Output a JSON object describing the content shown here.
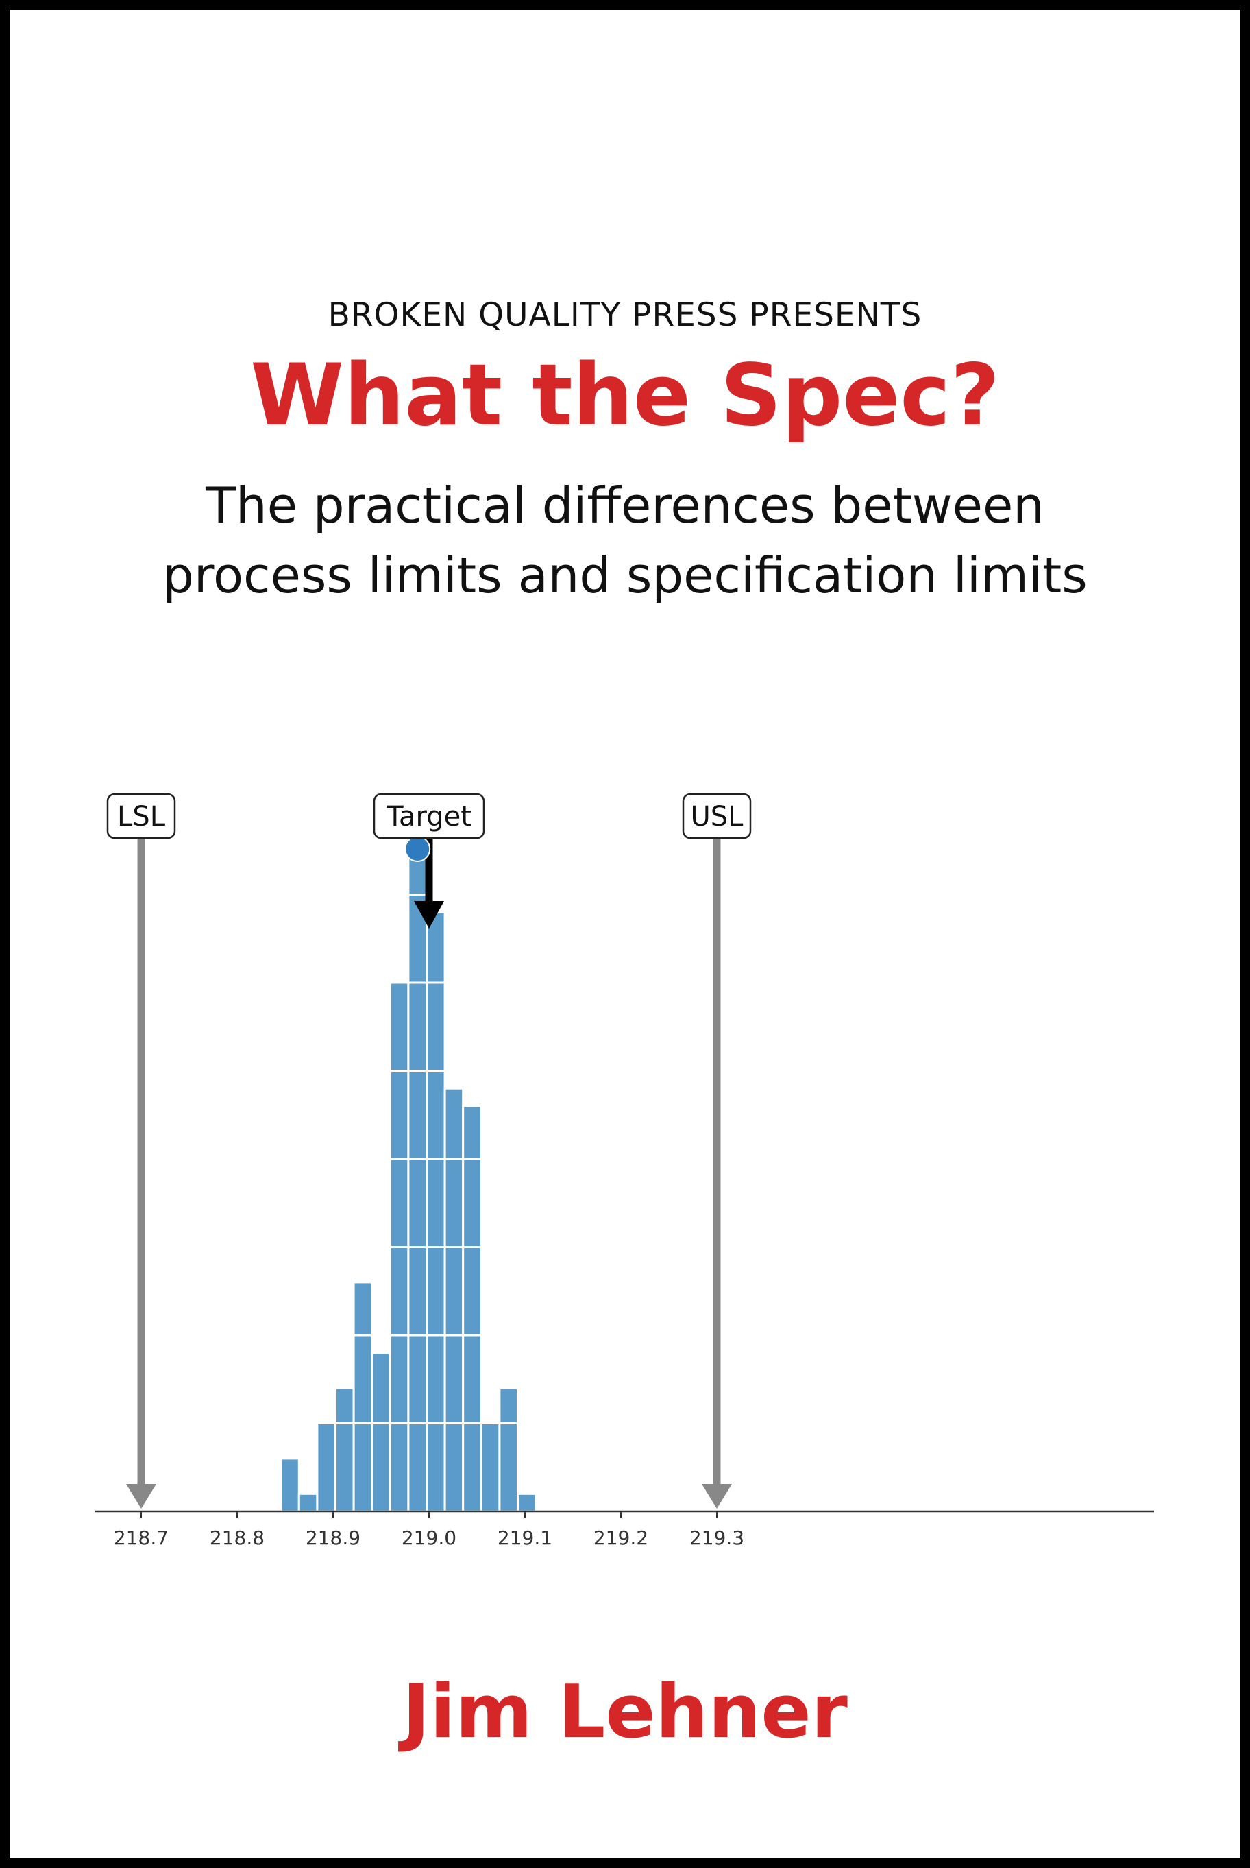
{
  "cover": {
    "publisher": "BROKEN QUALITY PRESS PRESENTS",
    "title": "What the Spec?",
    "subtitle_line1": "The practical differences between",
    "subtitle_line2": "process limits and specification limits",
    "author": "Jim Lehner"
  },
  "colors": {
    "accent": "#d62728",
    "bar": "#5b9bc9",
    "limit_arrow": "#888888",
    "target_arrow": "#000000",
    "target_dot": "#2f7bbf",
    "frame": "#000000"
  },
  "chart_data": {
    "type": "bar",
    "bin_width": 0.019,
    "bins": [
      {
        "center": 218.855,
        "count": 3
      },
      {
        "center": 218.874,
        "count": 1
      },
      {
        "center": 218.893,
        "count": 5
      },
      {
        "center": 218.912,
        "count": 7
      },
      {
        "center": 218.931,
        "count": 13
      },
      {
        "center": 218.95,
        "count": 9
      },
      {
        "center": 218.969,
        "count": 30
      },
      {
        "center": 218.988,
        "count": 38
      },
      {
        "center": 219.007,
        "count": 34
      },
      {
        "center": 219.026,
        "count": 24
      },
      {
        "center": 219.045,
        "count": 23
      },
      {
        "center": 219.064,
        "count": 5
      },
      {
        "center": 219.083,
        "count": 7
      },
      {
        "center": 219.102,
        "count": 1
      }
    ],
    "xlim": [
      218.67,
      219.33
    ],
    "ylim": [
      0,
      40
    ],
    "xticks": [
      "218.7",
      "218.8",
      "218.9",
      "219.0",
      "219.1",
      "219.2",
      "219.3"
    ],
    "xtick_values": [
      218.7,
      218.8,
      218.9,
      219.0,
      219.1,
      219.2,
      219.3
    ],
    "limits": [
      {
        "label": "LSL",
        "x": 218.7
      },
      {
        "label": "USL",
        "x": 219.3
      }
    ],
    "target": {
      "label": "Target",
      "x": 219.0
    },
    "process_mean": 218.988
  }
}
